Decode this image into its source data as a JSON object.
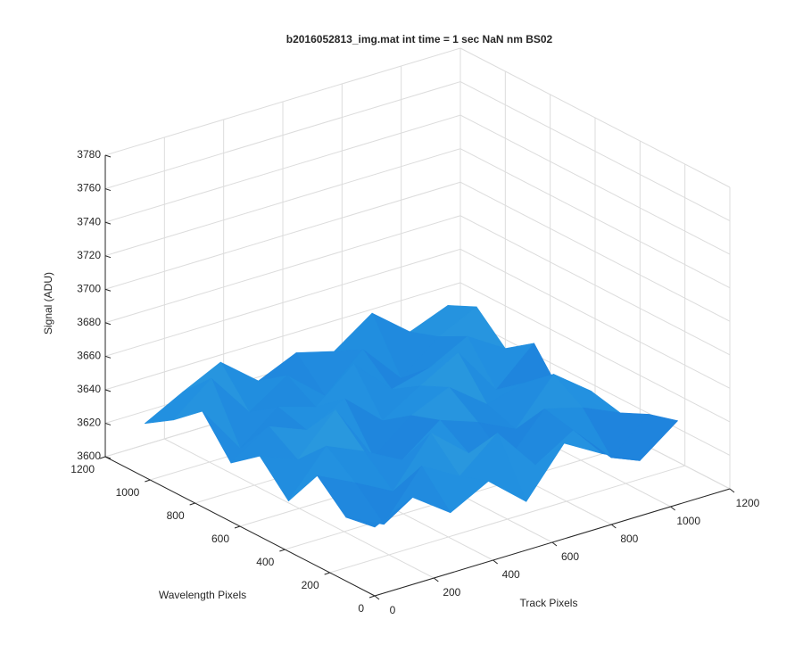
{
  "chart_data": {
    "type": "surface3d",
    "title": "b2016052813_img.mat int time = 1 sec  NaN nm BS02",
    "xlabel": "Track Pixels",
    "ylabel": "Wavelength Pixels",
    "zlabel": "Signal (ADU)",
    "xlim": [
      0,
      1200
    ],
    "ylim": [
      0,
      1200
    ],
    "zlim": [
      3600,
      3780
    ],
    "xticks": [
      0,
      200,
      400,
      600,
      800,
      1000,
      1200
    ],
    "yticks": [
      0,
      200,
      400,
      600,
      800,
      1000,
      1200
    ],
    "zticks": [
      3600,
      3620,
      3640,
      3660,
      3680,
      3700,
      3720,
      3740,
      3760,
      3780
    ],
    "grid": true,
    "colormap": [
      "#0a3cc8",
      "#2290e0",
      "#5ccbd0",
      "#b0d840",
      "#f5e020"
    ],
    "x": [
      0,
      128,
      256,
      384,
      512,
      640,
      768,
      896,
      1024
    ],
    "y": [
      0,
      128,
      256,
      384,
      512,
      640,
      768,
      896,
      1024
    ],
    "z": [
      [
        3641,
        3652,
        3636,
        3648,
        3629,
        3657,
        3644,
        3633,
        3650
      ],
      [
        3638,
        3627,
        3655,
        3642,
        3661,
        3635,
        3649,
        3626,
        3645
      ],
      [
        3654,
        3643,
        3631,
        3659,
        3640,
        3628,
        3653,
        3647,
        3637
      ],
      [
        3630,
        3656,
        3646,
        3634,
        3651,
        3643,
        3632,
        3658,
        3641
      ],
      [
        3648,
        3639,
        3662,
        3627,
        3645,
        3655,
        3638,
        3644,
        3629
      ],
      [
        3635,
        3650,
        3641,
        3653,
        3633,
        3647,
        3660,
        3631,
        3652
      ],
      [
        3657,
        3628,
        3646,
        3639,
        3658,
        3636,
        3642,
        3654,
        3640
      ],
      [
        3643,
        3661,
        3634,
        3649,
        3630,
        3651,
        3627,
        3645,
        3656
      ],
      [
        3632,
        3644,
        3655,
        3637,
        3647,
        3641,
        3657,
        3639,
        3648
      ]
    ]
  }
}
